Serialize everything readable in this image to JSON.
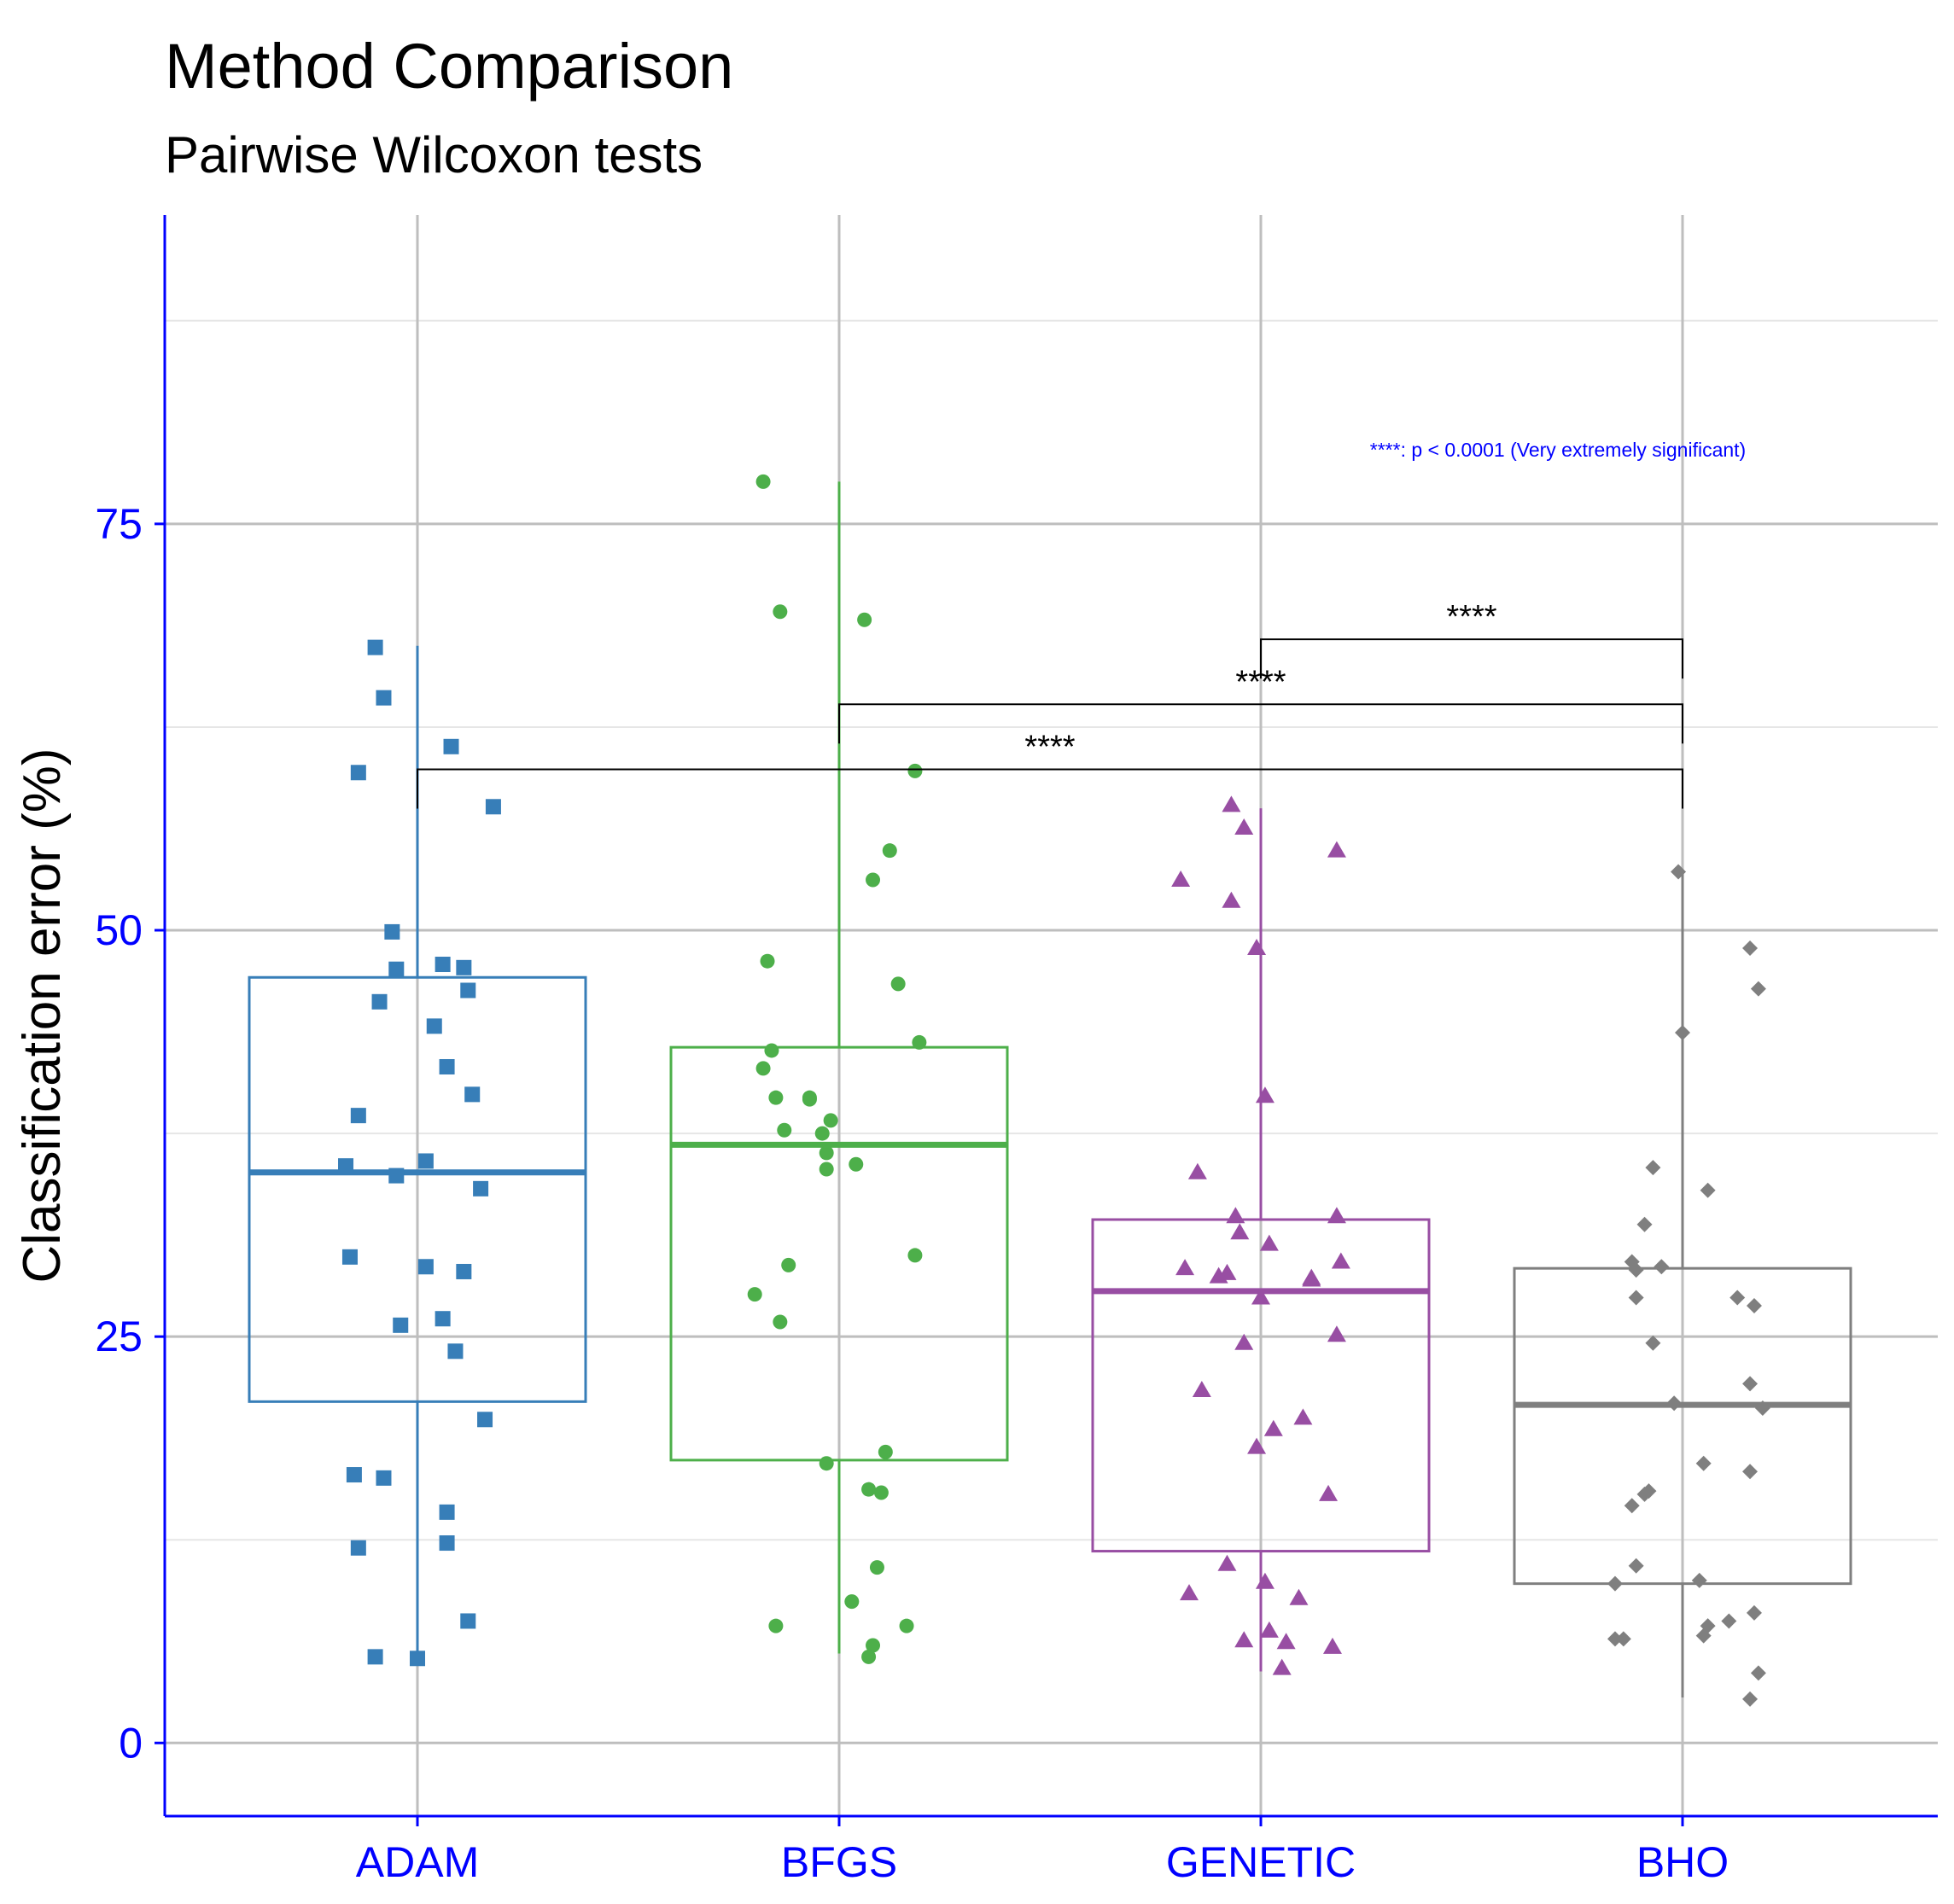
{
  "colors": {
    "axis": "#0000ff",
    "grid_major": "#bebebe",
    "grid_minor": "#e6e6e6",
    "bracket": "#000000"
  },
  "chart_data": {
    "type": "boxplot",
    "title": "Method Comparison",
    "subtitle": "Pairwise Wilcoxon tests",
    "xlabel": "",
    "ylabel": "Classification error (%)",
    "ylim": [
      -4.5,
      94
    ],
    "yticks": [
      0,
      25,
      50,
      75
    ],
    "categories": [
      "ADAM",
      "BFGS",
      "GENETIC",
      "BHO"
    ],
    "note": "****: p < 0.0001 (Very extremely significant)",
    "groups": [
      {
        "name": "ADAM",
        "color": "#377eb8",
        "shape": "square",
        "stats": {
          "whisker_low": 5.2,
          "q1": 21.0,
          "median": 35.1,
          "q3": 47.1,
          "whisker_high": 67.5
        },
        "points": [
          [
            -0.1,
            67.4
          ],
          [
            -0.08,
            64.3
          ],
          [
            -0.14,
            59.7
          ],
          [
            0.08,
            61.3
          ],
          [
            0.18,
            57.6
          ],
          [
            -0.06,
            49.9
          ],
          [
            -0.05,
            47.6
          ],
          [
            0.06,
            47.9
          ],
          [
            0.11,
            47.7
          ],
          [
            0.12,
            46.3
          ],
          [
            -0.09,
            45.6
          ],
          [
            0.04,
            44.1
          ],
          [
            0.07,
            41.6
          ],
          [
            0.13,
            39.9
          ],
          [
            -0.14,
            38.6
          ],
          [
            -0.17,
            35.5
          ],
          [
            0.02,
            35.8
          ],
          [
            -0.05,
            34.9
          ],
          [
            0.15,
            34.1
          ],
          [
            -0.16,
            29.9
          ],
          [
            0.02,
            29.3
          ],
          [
            0.11,
            29.0
          ],
          [
            -0.04,
            25.7
          ],
          [
            0.06,
            26.1
          ],
          [
            0.09,
            24.1
          ],
          [
            0.16,
            19.9
          ],
          [
            -0.15,
            16.5
          ],
          [
            -0.08,
            16.3
          ],
          [
            0.07,
            14.2
          ],
          [
            0.07,
            12.3
          ],
          [
            -0.14,
            12.0
          ],
          [
            0.12,
            7.5
          ],
          [
            -0.1,
            5.3
          ],
          [
            0.0,
            5.2
          ]
        ]
      },
      {
        "name": "BFGS",
        "color": "#4daf4a",
        "shape": "circle",
        "stats": {
          "whisker_low": 5.5,
          "q1": 17.4,
          "median": 36.8,
          "q3": 42.8,
          "whisker_high": 77.6
        },
        "points": [
          [
            -0.18,
            77.6
          ],
          [
            -0.14,
            69.6
          ],
          [
            0.06,
            69.1
          ],
          [
            0.18,
            59.8
          ],
          [
            0.12,
            54.9
          ],
          [
            0.08,
            53.1
          ],
          [
            -0.17,
            48.1
          ],
          [
            0.14,
            46.7
          ],
          [
            0.19,
            43.1
          ],
          [
            -0.16,
            42.6
          ],
          [
            -0.18,
            41.5
          ],
          [
            -0.15,
            39.7
          ],
          [
            -0.07,
            39.7
          ],
          [
            -0.07,
            39.6
          ],
          [
            -0.02,
            38.3
          ],
          [
            -0.13,
            37.7
          ],
          [
            -0.04,
            37.5
          ],
          [
            -0.03,
            36.3
          ],
          [
            -0.03,
            35.3
          ],
          [
            0.04,
            35.6
          ],
          [
            0.18,
            30.0
          ],
          [
            -0.12,
            29.4
          ],
          [
            -0.2,
            27.6
          ],
          [
            -0.14,
            25.9
          ],
          [
            0.11,
            17.9
          ],
          [
            -0.03,
            17.2
          ],
          [
            0.07,
            15.6
          ],
          [
            0.1,
            15.4
          ],
          [
            0.09,
            10.8
          ],
          [
            0.03,
            8.7
          ],
          [
            -0.15,
            7.2
          ],
          [
            0.16,
            7.2
          ],
          [
            0.08,
            6.0
          ],
          [
            0.07,
            5.3
          ]
        ]
      },
      {
        "name": "GENETIC",
        "color": "#984ea3",
        "shape": "triangle",
        "stats": {
          "whisker_low": 4.4,
          "q1": 11.8,
          "median": 27.8,
          "q3": 32.2,
          "whisker_high": 57.5
        },
        "points": [
          [
            -0.07,
            57.7
          ],
          [
            -0.04,
            56.3
          ],
          [
            0.18,
            54.9
          ],
          [
            -0.19,
            53.1
          ],
          [
            -0.07,
            51.8
          ],
          [
            -0.01,
            48.9
          ],
          [
            0.01,
            39.8
          ],
          [
            -0.15,
            35.1
          ],
          [
            -0.06,
            32.4
          ],
          [
            -0.05,
            31.4
          ],
          [
            0.02,
            30.7
          ],
          [
            0.18,
            32.4
          ],
          [
            0.19,
            29.6
          ],
          [
            -0.18,
            29.2
          ],
          [
            -0.1,
            28.7
          ],
          [
            -0.08,
            28.9
          ],
          [
            0.12,
            28.6
          ],
          [
            0.12,
            28.5
          ],
          [
            0.0,
            27.4
          ],
          [
            0.18,
            25.1
          ],
          [
            -0.04,
            24.6
          ],
          [
            -0.14,
            21.7
          ],
          [
            0.1,
            20.0
          ],
          [
            0.03,
            19.3
          ],
          [
            -0.01,
            18.2
          ],
          [
            0.16,
            15.3
          ],
          [
            -0.08,
            11.0
          ],
          [
            -0.17,
            9.2
          ],
          [
            0.01,
            9.9
          ],
          [
            0.09,
            8.9
          ],
          [
            0.02,
            6.9
          ],
          [
            -0.04,
            6.3
          ],
          [
            0.06,
            6.2
          ],
          [
            0.17,
            5.9
          ],
          [
            0.05,
            4.6
          ]
        ]
      },
      {
        "name": "BHO",
        "color": "#7f7f7f",
        "shape": "diamond",
        "stats": {
          "whisker_low": 2.8,
          "q1": 9.8,
          "median": 20.8,
          "q3": 29.2,
          "whisker_high": 53.6
        },
        "points": [
          [
            -0.01,
            53.6
          ],
          [
            0.16,
            48.9
          ],
          [
            0.18,
            46.4
          ],
          [
            0.0,
            43.7
          ],
          [
            -0.07,
            35.4
          ],
          [
            0.06,
            34.0
          ],
          [
            -0.09,
            31.9
          ],
          [
            -0.05,
            29.3
          ],
          [
            -0.12,
            29.6
          ],
          [
            -0.11,
            29.1
          ],
          [
            0.13,
            27.4
          ],
          [
            0.17,
            26.9
          ],
          [
            -0.11,
            27.4
          ],
          [
            -0.07,
            24.6
          ],
          [
            0.16,
            22.1
          ],
          [
            -0.02,
            20.9
          ],
          [
            0.19,
            20.6
          ],
          [
            0.05,
            17.2
          ],
          [
            0.16,
            16.7
          ],
          [
            -0.08,
            15.5
          ],
          [
            -0.09,
            15.3
          ],
          [
            -0.12,
            14.6
          ],
          [
            -0.11,
            10.9
          ],
          [
            0.04,
            10.0
          ],
          [
            -0.16,
            9.8
          ],
          [
            0.17,
            8.0
          ],
          [
            0.11,
            7.5
          ],
          [
            0.06,
            7.2
          ],
          [
            0.05,
            6.6
          ],
          [
            -0.16,
            6.4
          ],
          [
            -0.14,
            6.4
          ],
          [
            0.18,
            4.3
          ],
          [
            0.16,
            2.7
          ]
        ]
      }
    ],
    "comparisons": [
      {
        "group1": "ADAM",
        "group2": "BHO",
        "y": 59.9,
        "label": "****"
      },
      {
        "group1": "BFGS",
        "group2": "BHO",
        "y": 63.9,
        "label": "****"
      },
      {
        "group1": "GENETIC",
        "group2": "BHO",
        "y": 67.9,
        "label": "****"
      }
    ]
  }
}
